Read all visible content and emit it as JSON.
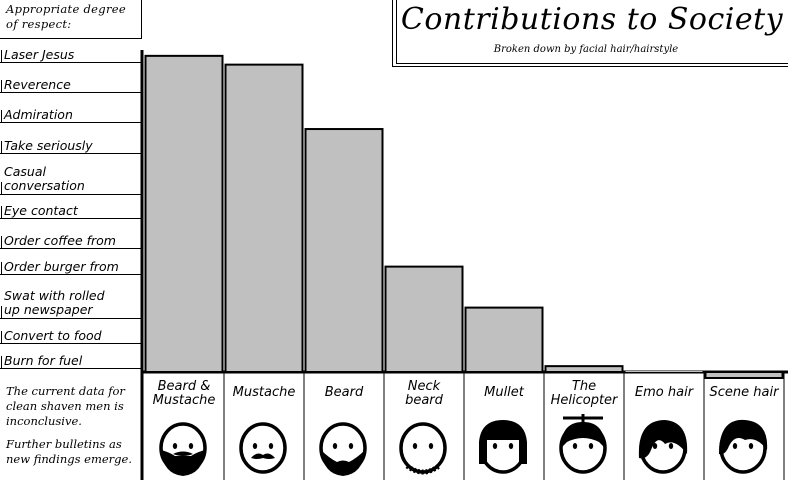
{
  "chart_data": {
    "type": "bar",
    "title": "Contributions to Society",
    "subtitle": "Broken down by facial hair/hairstyle",
    "ylabel": "Appropriate degree of respect:",
    "ylabel_lines": [
      "Appropriate degree",
      "of respect:"
    ],
    "yticks": [
      {
        "label": "Laser Jesus",
        "value": 11,
        "lines": [
          "Laser Jesus"
        ]
      },
      {
        "label": "Reverence",
        "value": 10,
        "lines": [
          "Reverence"
        ]
      },
      {
        "label": "Admiration",
        "value": 9,
        "lines": [
          "Admiration"
        ]
      },
      {
        "label": "Take seriously",
        "value": 8,
        "lines": [
          "Take seriously"
        ]
      },
      {
        "label": "Casual conversation",
        "value": 7,
        "lines": [
          "Casual",
          "conversation"
        ]
      },
      {
        "label": "Eye contact",
        "value": 6,
        "lines": [
          "Eye contact"
        ]
      },
      {
        "label": "Order coffee from",
        "value": 5,
        "lines": [
          "Order coffee from"
        ]
      },
      {
        "label": "Order burger from",
        "value": 4,
        "lines": [
          "Order burger from"
        ]
      },
      {
        "label": "Swat with rolled up newspaper",
        "value": 3,
        "lines": [
          "Swat with rolled",
          "up newspaper"
        ]
      },
      {
        "label": "Convert to food",
        "value": 2,
        "lines": [
          "Convert to food"
        ]
      },
      {
        "label": "Burn for fuel",
        "value": 1,
        "lines": [
          "Burn for fuel"
        ]
      }
    ],
    "ylim": [
      0,
      11
    ],
    "categories": [
      "Beard & Mustache",
      "Mustache",
      "Beard",
      "Neck beard",
      "Mullet",
      "The Helicopter",
      "Emo hair",
      "Scene hair"
    ],
    "category_lines": [
      [
        "Beard &",
        "Mustache"
      ],
      [
        "Mustache"
      ],
      [
        "Beard"
      ],
      [
        "Neck",
        "beard"
      ],
      [
        "Mullet"
      ],
      [
        "The",
        "Helicopter"
      ],
      [
        "Emo hair"
      ],
      [
        "Scene hair"
      ]
    ],
    "values": [
      10.8,
      10.5,
      8.3,
      3.6,
      2.2,
      0.2,
      0,
      -0.2
    ],
    "note": [
      "The current data for clean shaven men is inconclusive.",
      "Further bulletins as new findings emerge."
    ],
    "colors": {
      "bar": "#c0c0c0",
      "stroke": "#000000",
      "face": "#ffffff",
      "hair": "#000000"
    },
    "icons": [
      "beard-mustache-face-icon",
      "mustache-face-icon",
      "beard-face-icon",
      "neck-beard-face-icon",
      "mullet-face-icon",
      "helicopter-face-icon",
      "emo-face-icon",
      "scene-face-icon"
    ]
  }
}
